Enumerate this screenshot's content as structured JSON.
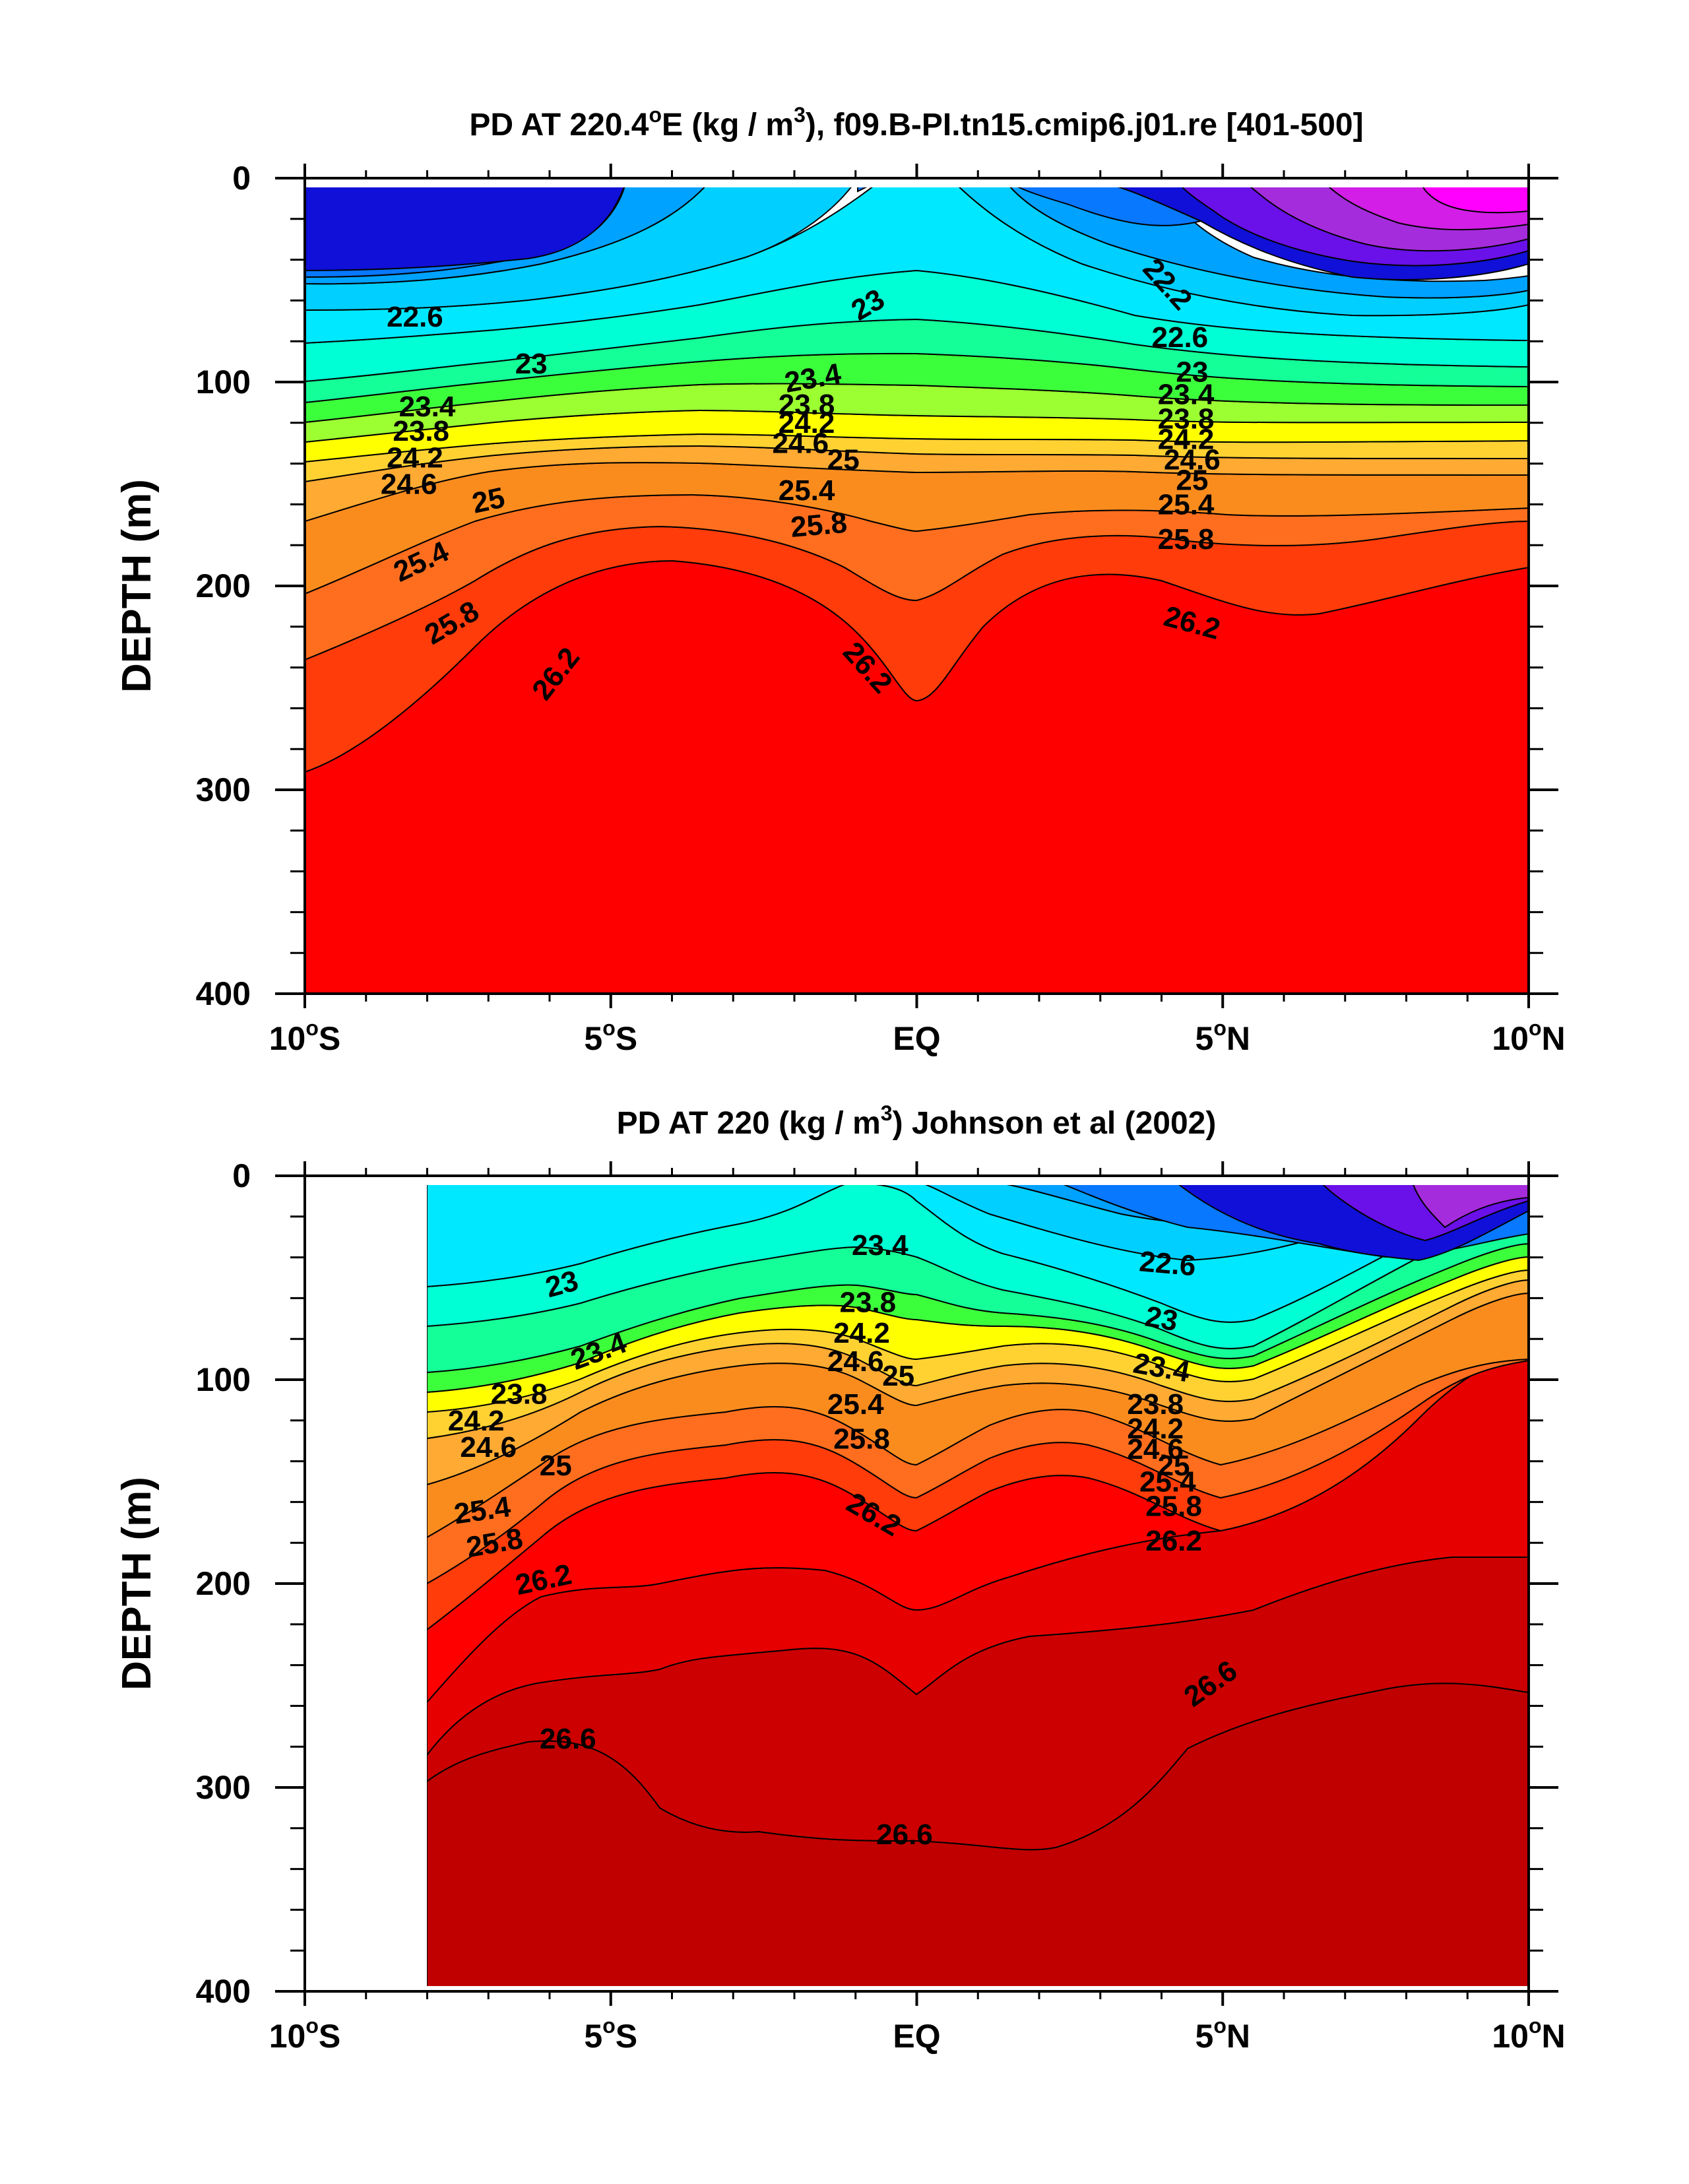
{
  "chart_data": [
    {
      "type": "contour",
      "title": "PD AT 220.4°E (kg / m3), f09.B-PI.tn15.cmip6.j01.re [401-500]",
      "title_main": "PD AT 220.4",
      "title_deg": "o",
      "title_rest": "E (kg / m",
      "title_sup": "3",
      "title_end": "), f09.B-PI.tn15.cmip6.j01.re [401-500]",
      "ylabel": "DEPTH (m)",
      "xlim": [
        -10,
        10
      ],
      "ylim": [
        0,
        400
      ],
      "y_reversed": true,
      "x_ticks": [
        {
          "value": -10,
          "num": "10",
          "deg": "o",
          "hem": "S"
        },
        {
          "value": -5,
          "num": "5",
          "deg": "o",
          "hem": "S"
        },
        {
          "value": 0,
          "num": "EQ",
          "deg": "",
          "hem": ""
        },
        {
          "value": 5,
          "num": "5",
          "deg": "o",
          "hem": "N"
        },
        {
          "value": 10,
          "num": "10",
          "deg": "o",
          "hem": "N"
        }
      ],
      "y_ticks": [
        "0",
        "100",
        "200",
        "300",
        "400"
      ],
      "data_x_range": [
        -10,
        10
      ],
      "contour_levels": [
        21.6,
        21.8,
        22.0,
        22.2,
        22.4,
        22.6,
        22.8,
        23.0,
        23.2,
        23.4,
        23.6,
        23.8,
        24.0,
        24.2,
        24.4,
        24.6,
        24.8,
        25.0,
        25.2,
        25.4,
        25.6,
        25.8,
        26.0,
        26.2,
        26.4,
        26.6,
        26.8
      ],
      "fill_colors": [
        "#ff00ff",
        "#d21ee6",
        "#a52cdc",
        "#6a10e8",
        "#1010d8",
        "#0a3cff",
        "#0878ff",
        "#00a2ff",
        "#00cfff",
        "#00e8ff",
        "#00ffd4",
        "#14ff98",
        "#3cff3c",
        "#9bff32",
        "#e6ff28",
        "#ffff00",
        "#ffd232",
        "#ffaa32",
        "#fa8c1e",
        "#ff6e1e",
        "#ff3c0a",
        "#ff0000",
        "#e60000",
        "#cc0000"
      ],
      "contour_labels": [
        {
          "text": "22.2",
          "x": 4.1,
          "y": 52,
          "angle": 48
        },
        {
          "text": "22.6",
          "x": -8.2,
          "y": 68,
          "angle": 0
        },
        {
          "text": "22.6",
          "x": 4.3,
          "y": 78,
          "angle": 0
        },
        {
          "text": "23",
          "x": -6.3,
          "y": 91,
          "angle": 0
        },
        {
          "text": "23",
          "x": -0.8,
          "y": 62,
          "angle": -30
        },
        {
          "text": "23",
          "x": 4.5,
          "y": 95,
          "angle": 0
        },
        {
          "text": "23.4",
          "x": -8.0,
          "y": 112,
          "angle": 0
        },
        {
          "text": "23.4",
          "x": -1.7,
          "y": 98,
          "angle": -10
        },
        {
          "text": "23.4",
          "x": 4.4,
          "y": 106,
          "angle": 0
        },
        {
          "text": "23.8",
          "x": -8.1,
          "y": 124,
          "angle": 0
        },
        {
          "text": "23.8",
          "x": -1.8,
          "y": 111,
          "angle": 0
        },
        {
          "text": "23.8",
          "x": 4.4,
          "y": 118,
          "angle": 0
        },
        {
          "text": "24.2",
          "x": -8.2,
          "y": 137,
          "angle": 0
        },
        {
          "text": "24.2",
          "x": -1.8,
          "y": 120,
          "angle": 0
        },
        {
          "text": "24.2",
          "x": 4.4,
          "y": 128,
          "angle": 0
        },
        {
          "text": "24.6",
          "x": -8.3,
          "y": 150,
          "angle": 0
        },
        {
          "text": "24.6",
          "x": -1.9,
          "y": 130,
          "angle": 0
        },
        {
          "text": "24.6",
          "x": 4.5,
          "y": 138,
          "angle": 0
        },
        {
          "text": "25",
          "x": -7.0,
          "y": 158,
          "angle": -12
        },
        {
          "text": "25",
          "x": -1.2,
          "y": 138,
          "angle": 0
        },
        {
          "text": "25",
          "x": 4.5,
          "y": 148,
          "angle": 0
        },
        {
          "text": "25.4",
          "x": -1.8,
          "y": 153,
          "angle": 0
        },
        {
          "text": "25.4",
          "x": 4.4,
          "y": 160,
          "angle": 0
        },
        {
          "text": "25.4",
          "x": -8.1,
          "y": 188,
          "angle": -25
        },
        {
          "text": "25.8",
          "x": -1.6,
          "y": 170,
          "angle": -5
        },
        {
          "text": "25.8",
          "x": 4.4,
          "y": 177,
          "angle": 0
        },
        {
          "text": "25.8",
          "x": -7.6,
          "y": 218,
          "angle": -30
        },
        {
          "text": "26.2",
          "x": 4.5,
          "y": 218,
          "angle": 15
        },
        {
          "text": "26.2",
          "x": -0.8,
          "y": 240,
          "angle": 48
        },
        {
          "text": "26.2",
          "x": -5.9,
          "y": 243,
          "angle": -52
        }
      ]
    },
    {
      "type": "contour",
      "title": "PD AT 220 (kg / m3) Johnson et al (2002)",
      "title_main": "PD AT 220 (kg / m",
      "title_sup": "3",
      "title_end": ") Johnson et al (2002)",
      "ylabel": "DEPTH (m)",
      "xlim": [
        -10,
        10
      ],
      "ylim": [
        0,
        400
      ],
      "y_reversed": true,
      "x_ticks": [
        {
          "value": -10,
          "num": "10",
          "deg": "o",
          "hem": "S"
        },
        {
          "value": -5,
          "num": "5",
          "deg": "o",
          "hem": "S"
        },
        {
          "value": 0,
          "num": "EQ",
          "deg": "",
          "hem": ""
        },
        {
          "value": 5,
          "num": "5",
          "deg": "o",
          "hem": "N"
        },
        {
          "value": 10,
          "num": "10",
          "deg": "o",
          "hem": "N"
        }
      ],
      "y_ticks": [
        "0",
        "100",
        "200",
        "300",
        "400"
      ],
      "data_x_range": [
        -8,
        10
      ],
      "contour_levels": [
        21.8,
        22.0,
        22.2,
        22.4,
        22.6,
        22.8,
        23.0,
        23.2,
        23.4,
        23.6,
        23.8,
        24.0,
        24.2,
        24.4,
        24.6,
        24.8,
        25.0,
        25.2,
        25.4,
        25.6,
        25.8,
        26.0,
        26.2,
        26.4,
        26.6,
        26.8
      ],
      "fill_colors": [
        "#a52cdc",
        "#6a10e8",
        "#1010d8",
        "#0a3cff",
        "#0878ff",
        "#00a2ff",
        "#00cfff",
        "#00e8ff",
        "#00ffd4",
        "#14ff98",
        "#3cff3c",
        "#9bff32",
        "#e6ff28",
        "#ffff00",
        "#ffd232",
        "#ffaa32",
        "#fa8c1e",
        "#ff6e1e",
        "#ff3c0a",
        "#ff0000",
        "#e60000",
        "#cc0000",
        "#c00000"
      ],
      "contour_labels": [
        {
          "text": "22.6",
          "x": 4.1,
          "y": 43,
          "angle": 5
        },
        {
          "text": "23",
          "x": -5.8,
          "y": 53,
          "angle": -15
        },
        {
          "text": "23",
          "x": 4.0,
          "y": 70,
          "angle": 10
        },
        {
          "text": "23.4",
          "x": -0.6,
          "y": 34,
          "angle": 0
        },
        {
          "text": "23.4",
          "x": -5.2,
          "y": 86,
          "angle": -20
        },
        {
          "text": "23.4",
          "x": 4.0,
          "y": 94,
          "angle": 10
        },
        {
          "text": "23.8",
          "x": -0.8,
          "y": 62,
          "angle": 0
        },
        {
          "text": "23.8",
          "x": -6.5,
          "y": 107,
          "angle": 0
        },
        {
          "text": "23.8",
          "x": 3.9,
          "y": 112,
          "angle": 0
        },
        {
          "text": "24.2",
          "x": -0.9,
          "y": 77,
          "angle": 0
        },
        {
          "text": "24.2",
          "x": -7.2,
          "y": 120,
          "angle": 0
        },
        {
          "text": "24.2",
          "x": 3.9,
          "y": 124,
          "angle": 0
        },
        {
          "text": "24.6",
          "x": -1.0,
          "y": 91,
          "angle": 0
        },
        {
          "text": "24.6",
          "x": -7.0,
          "y": 133,
          "angle": 0
        },
        {
          "text": "24.6",
          "x": 3.9,
          "y": 134,
          "angle": 0
        },
        {
          "text": "25",
          "x": -0.3,
          "y": 98,
          "angle": 0
        },
        {
          "text": "25",
          "x": -5.9,
          "y": 142,
          "angle": 0
        },
        {
          "text": "25",
          "x": 4.2,
          "y": 142,
          "angle": 0
        },
        {
          "text": "25.4",
          "x": -1.0,
          "y": 112,
          "angle": 0
        },
        {
          "text": "25.4",
          "x": -7.1,
          "y": 164,
          "angle": -8
        },
        {
          "text": "25.4",
          "x": 4.1,
          "y": 150,
          "angle": 0
        },
        {
          "text": "25.8",
          "x": -0.9,
          "y": 129,
          "angle": 0
        },
        {
          "text": "25.8",
          "x": -6.9,
          "y": 180,
          "angle": -10
        },
        {
          "text": "25.8",
          "x": 4.2,
          "y": 162,
          "angle": 0
        },
        {
          "text": "26.2",
          "x": -6.1,
          "y": 198,
          "angle": -12
        },
        {
          "text": "26.2",
          "x": -0.7,
          "y": 166,
          "angle": 30
        },
        {
          "text": "26.2",
          "x": 4.2,
          "y": 179,
          "angle": 0
        },
        {
          "text": "26.6",
          "x": -5.7,
          "y": 276,
          "angle": 0
        },
        {
          "text": "26.6",
          "x": -0.2,
          "y": 323,
          "angle": 0
        },
        {
          "text": "26.6",
          "x": 4.8,
          "y": 249,
          "angle": -35
        }
      ]
    }
  ]
}
